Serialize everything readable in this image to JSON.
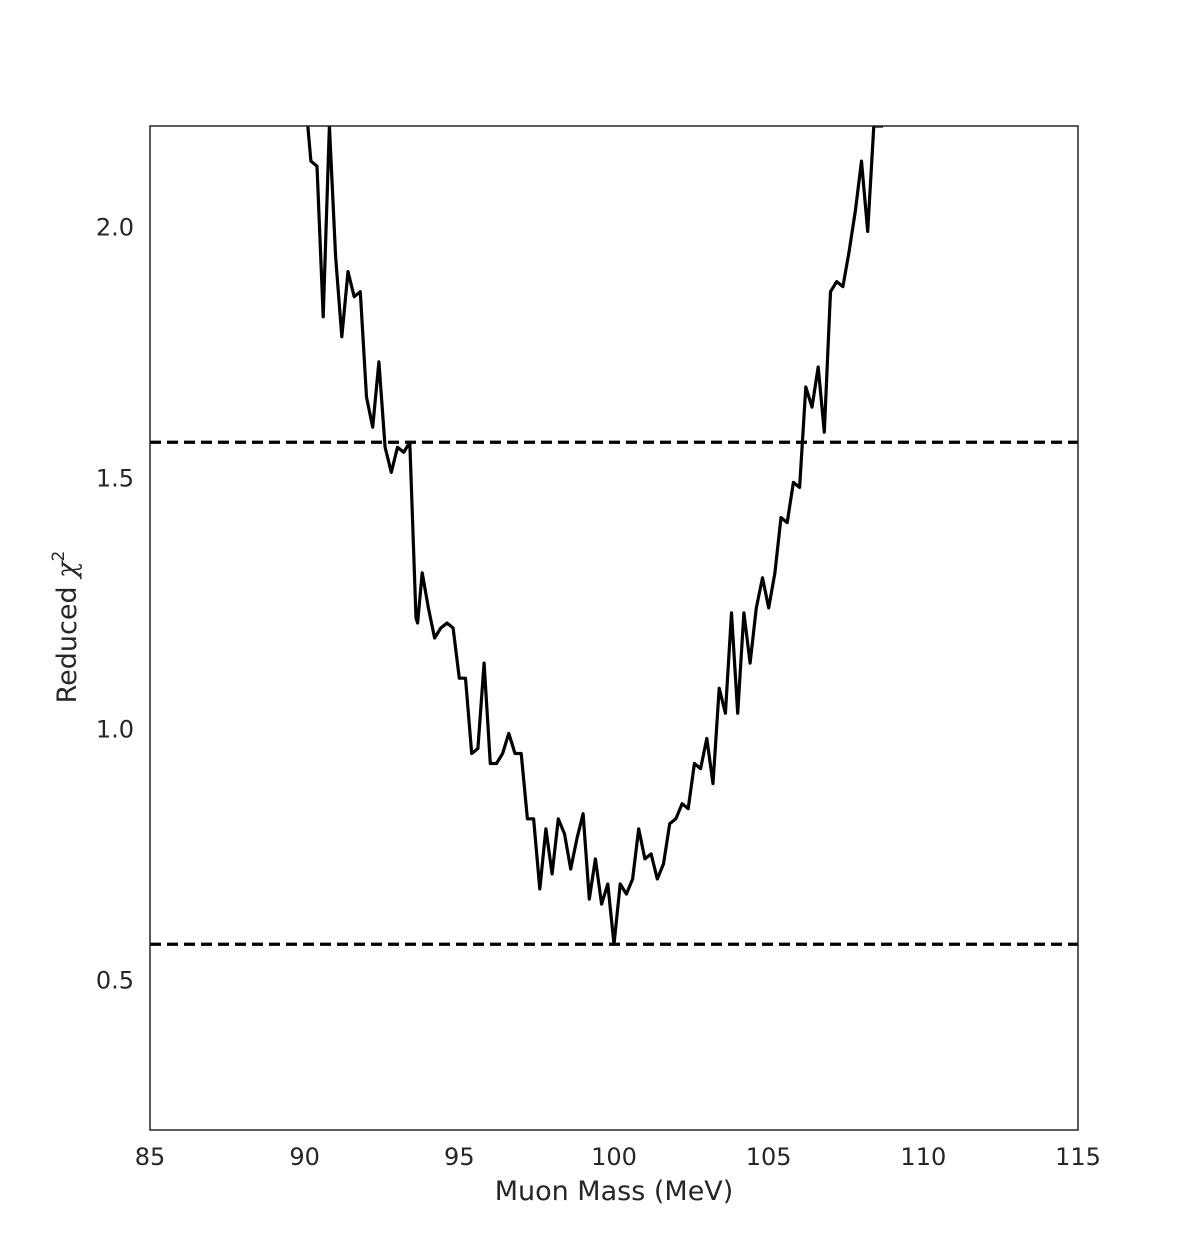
{
  "chart_data": {
    "type": "line",
    "title": "",
    "xlabel": "Muon Mass (MeV)",
    "ylabel": {
      "text": "Reduced ",
      "symbol": "χ",
      "superscript": "2"
    },
    "xlim": [
      85,
      115
    ],
    "ylim": [
      0.2,
      2.2
    ],
    "xticks": [
      85,
      90,
      95,
      100,
      105,
      110,
      115
    ],
    "xtick_labels": [
      "85",
      "90",
      "95",
      "100",
      "105",
      "110",
      "115"
    ],
    "yticks": [
      0.5,
      1.0,
      1.5,
      2.0
    ],
    "ytick_labels": [
      "0.5",
      "1.0",
      "1.5",
      "2.0"
    ],
    "grid": false,
    "series": [
      {
        "color": "#000000",
        "style": "solid",
        "x": [
          90.1,
          90.2,
          90.4,
          90.6,
          90.8,
          91.0,
          91.2,
          91.4,
          91.6,
          91.8,
          92.0,
          92.2,
          92.4,
          92.6,
          92.8,
          93.0,
          93.2,
          93.4,
          93.6,
          93.65,
          93.8,
          94.0,
          94.2,
          94.4,
          94.6,
          94.8,
          95.0,
          95.2,
          95.4,
          95.6,
          95.8,
          96.0,
          96.2,
          96.4,
          96.6,
          96.8,
          97.0,
          97.2,
          97.4,
          97.6,
          97.8,
          98.0,
          98.2,
          98.4,
          98.6,
          98.8,
          99.0,
          99.2,
          99.4,
          99.6,
          99.8,
          100.0,
          100.2,
          100.4,
          100.6,
          100.8,
          101.0,
          101.2,
          101.4,
          101.6,
          101.8,
          102.0,
          102.2,
          102.4,
          102.6,
          102.8,
          103.0,
          103.2,
          103.4,
          103.6,
          103.8,
          104.0,
          104.2,
          104.4,
          104.6,
          104.8,
          105.0,
          105.2,
          105.4,
          105.6,
          105.8,
          106.0,
          106.2,
          106.4,
          106.6,
          106.8,
          107.0,
          107.2,
          107.4,
          107.6,
          107.8,
          108.0,
          108.2,
          108.4,
          108.6,
          108.7
        ],
        "y": [
          2.2,
          2.13,
          2.12,
          1.82,
          2.2,
          1.94,
          1.78,
          1.91,
          1.86,
          1.87,
          1.66,
          1.6,
          1.73,
          1.56,
          1.51,
          1.56,
          1.55,
          1.57,
          1.22,
          1.21,
          1.31,
          1.24,
          1.18,
          1.2,
          1.21,
          1.2,
          1.1,
          1.1,
          0.95,
          0.96,
          1.13,
          0.93,
          0.93,
          0.95,
          0.99,
          0.95,
          0.95,
          0.82,
          0.82,
          0.68,
          0.8,
          0.71,
          0.82,
          0.79,
          0.72,
          0.78,
          0.83,
          0.66,
          0.74,
          0.65,
          0.69,
          0.57,
          0.69,
          0.67,
          0.7,
          0.8,
          0.74,
          0.75,
          0.7,
          0.73,
          0.81,
          0.82,
          0.85,
          0.84,
          0.93,
          0.92,
          0.98,
          0.89,
          1.08,
          1.03,
          1.23,
          1.03,
          1.23,
          1.13,
          1.24,
          1.3,
          1.24,
          1.31,
          1.42,
          1.41,
          1.49,
          1.48,
          1.68,
          1.64,
          1.72,
          1.59,
          1.87,
          1.89,
          1.88,
          1.95,
          2.03,
          2.13,
          1.99,
          2.2,
          2.2,
          2.2
        ]
      }
    ],
    "reference_lines": [
      {
        "y": 1.57,
        "style": "dashed",
        "color": "#000000"
      },
      {
        "y": 0.57,
        "style": "dashed",
        "color": "#000000"
      }
    ]
  }
}
